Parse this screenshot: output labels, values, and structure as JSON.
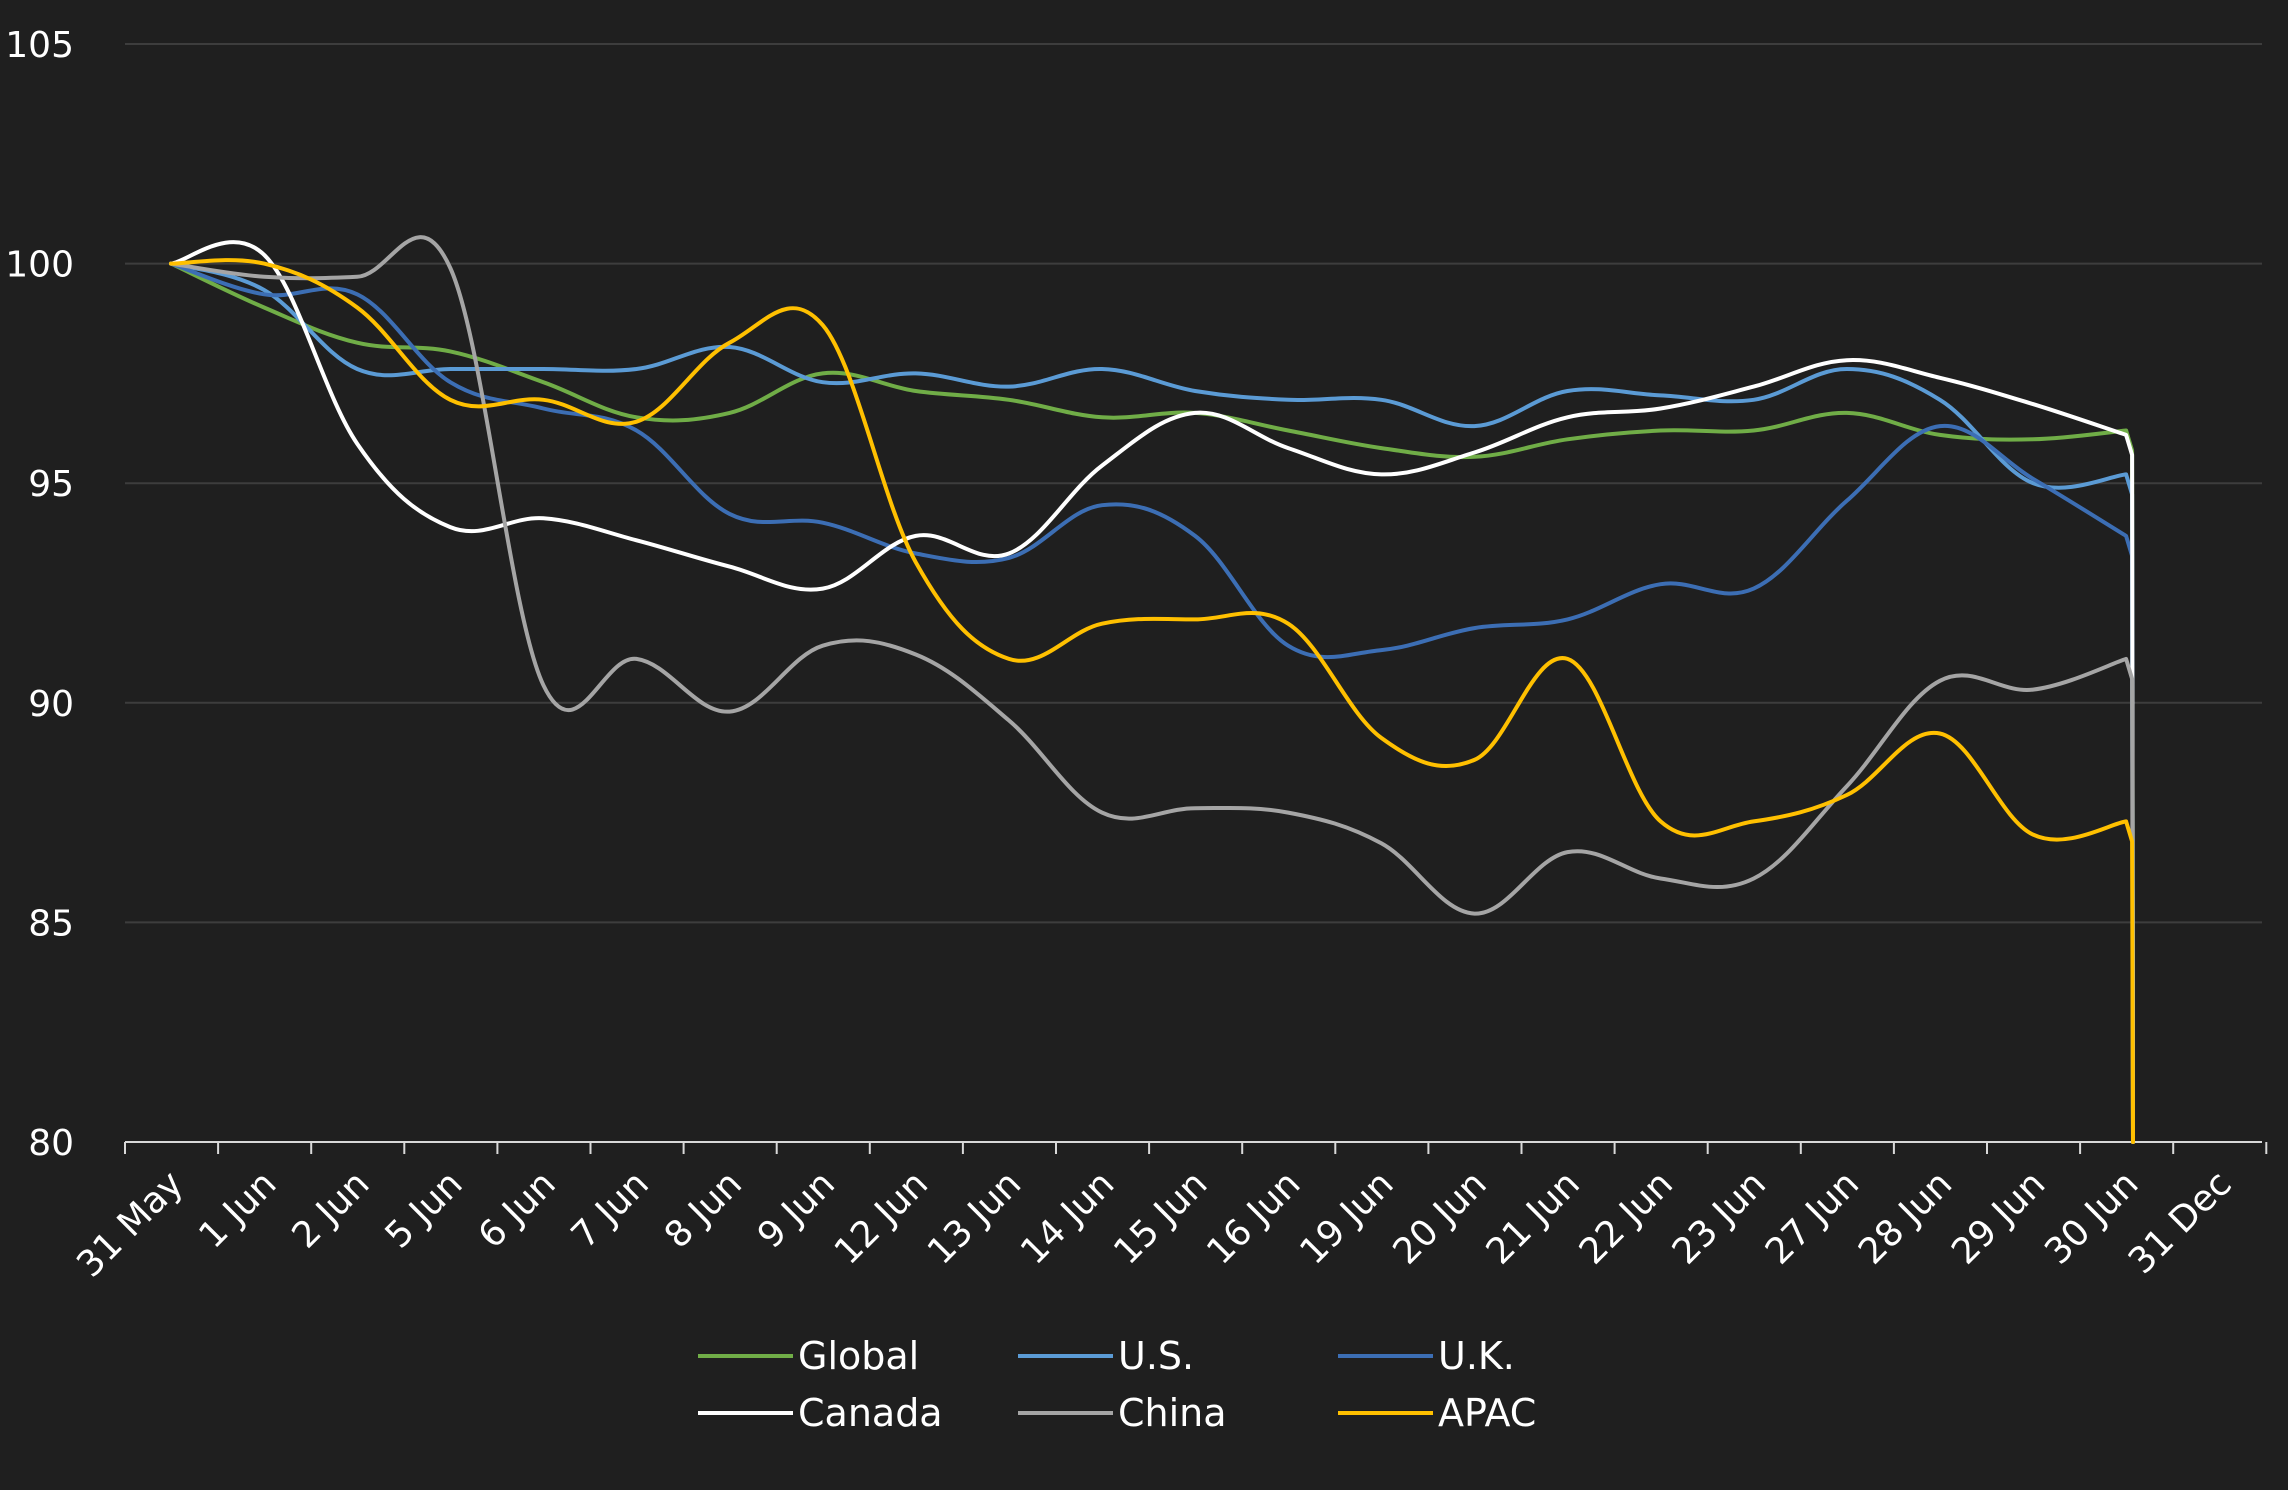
{
  "chart_data": {
    "type": "line",
    "title": "",
    "xlabel": "",
    "ylabel": "",
    "categories": [
      "31 May",
      "1 Jun",
      "2 Jun",
      "5 Jun",
      "6 Jun",
      "7 Jun",
      "8 Jun",
      "9 Jun",
      "12 Jun",
      "13 Jun",
      "14 Jun",
      "15 Jun",
      "16 Jun",
      "19 Jun",
      "20 Jun",
      "21 Jun",
      "22 Jun",
      "23 Jun",
      "27 Jun",
      "28 Jun",
      "29 Jun",
      "30 Jun",
      "31 Dec"
    ],
    "ylim": [
      80,
      105
    ],
    "yticks": [
      80,
      85,
      90,
      95,
      100,
      105
    ],
    "grid": true,
    "legend_position": "bottom",
    "series": [
      {
        "name": "Global",
        "color": "#70ad47",
        "values": [
          100,
          99.0,
          98.2,
          98.0,
          97.3,
          96.5,
          96.6,
          97.5,
          97.1,
          96.9,
          96.5,
          96.6,
          96.2,
          95.8,
          95.6,
          96.0,
          96.2,
          96.2,
          96.6,
          96.1,
          96.0,
          96.2,
          80
        ]
      },
      {
        "name": "U.S.",
        "color": "#5b9bd5",
        "values": [
          100,
          99.4,
          97.6,
          97.6,
          97.6,
          97.6,
          98.1,
          97.3,
          97.5,
          97.2,
          97.6,
          97.1,
          96.9,
          96.9,
          96.3,
          97.1,
          97.0,
          96.9,
          97.6,
          96.9,
          95.0,
          95.2,
          80
        ]
      },
      {
        "name": "U.K.",
        "color": "#3c6eb4",
        "values": [
          100,
          99.3,
          99.3,
          97.3,
          96.7,
          96.2,
          94.3,
          94.1,
          93.4,
          93.3,
          94.5,
          93.8,
          91.3,
          91.2,
          91.7,
          91.9,
          92.7,
          92.6,
          94.6,
          96.3,
          95.1,
          93.8,
          80
        ]
      },
      {
        "name": "Canada",
        "color": "#ffffff",
        "values": [
          100,
          100.2,
          95.9,
          94.0,
          94.2,
          93.7,
          93.1,
          92.6,
          93.8,
          93.4,
          95.4,
          96.6,
          95.8,
          95.2,
          95.7,
          96.5,
          96.7,
          97.2,
          97.8,
          97.4,
          96.8,
          96.1,
          80
        ]
      },
      {
        "name": "China",
        "color": "#a5a5a5",
        "values": [
          100,
          99.7,
          99.7,
          99.9,
          90.4,
          91.0,
          89.8,
          91.3,
          91.1,
          89.6,
          87.5,
          87.6,
          87.5,
          86.8,
          85.2,
          86.6,
          86.0,
          86.0,
          88.1,
          90.5,
          90.3,
          91.0,
          80
        ]
      },
      {
        "name": "APAC",
        "color": "#ffc000",
        "values": [
          100,
          100.0,
          99.0,
          96.9,
          96.9,
          96.4,
          98.2,
          98.6,
          93.2,
          91.0,
          91.8,
          91.9,
          91.8,
          89.2,
          88.7,
          91.0,
          87.3,
          87.3,
          87.9,
          89.3,
          87.0,
          87.3,
          80
        ]
      }
    ]
  }
}
